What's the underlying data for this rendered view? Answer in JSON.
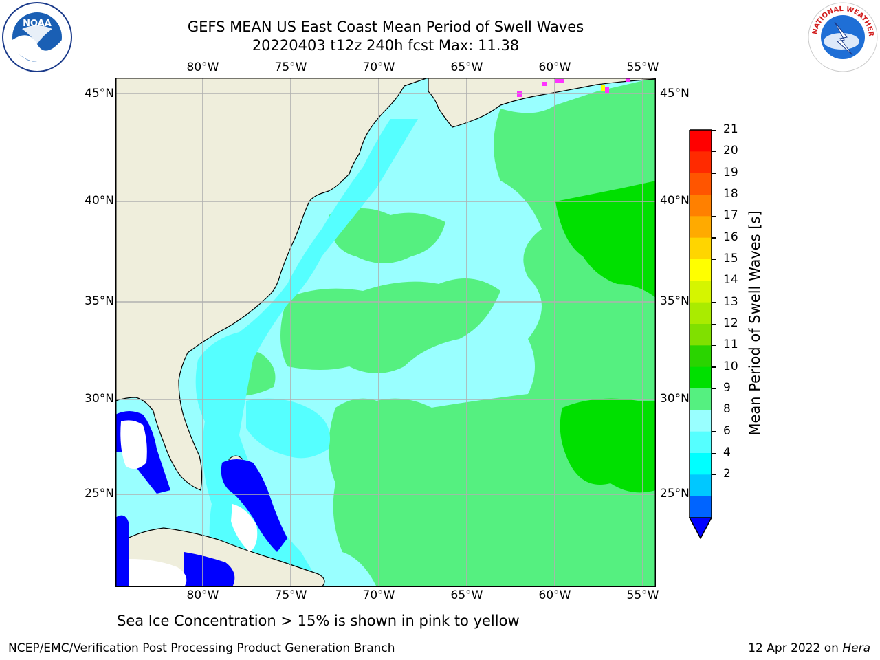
{
  "title_line1": "GEFS MEAN US East Coast Mean Period of Swell Waves",
  "title_line2": "20220403 t12z 240h fcst   Max: 11.38",
  "top_lon_labels": [
    "80°W",
    "75°W",
    "70°W",
    "65°W",
    "60°W",
    "55°W"
  ],
  "bottom_lon_labels": [
    "80°W",
    "75°W",
    "70°W",
    "65°W",
    "60°W",
    "55°W"
  ],
  "left_lat_labels": [
    "45°N",
    "40°N",
    "35°N",
    "30°N",
    "25°N"
  ],
  "right_lat_labels": [
    "45°N",
    "40°N",
    "35°N",
    "30°N",
    "25°N"
  ],
  "colorbar": {
    "title": "Mean Period of Swell Waves [s]",
    "ticks": [
      "21",
      "20",
      "19",
      "18",
      "17",
      "16",
      "15",
      "14",
      "13",
      "12",
      "11",
      "10",
      "9",
      "8",
      "6",
      "4",
      "2"
    ],
    "colors": [
      "#ff0000",
      "#ff2a00",
      "#ff5500",
      "#ff8000",
      "#ffaa00",
      "#ffd500",
      "#ffff00",
      "#d5f500",
      "#aaeb00",
      "#80e000",
      "#2ad400",
      "#00e000",
      "#55f080",
      "#99ffff",
      "#55ffff",
      "#00ffff",
      "#00c8ff",
      "#0064ff"
    ],
    "extend_color": "#0000ff"
  },
  "map_colors": {
    "land": "#efeedc",
    "water_low": "#55ffff",
    "water_mid": "#99ffff",
    "water_high": "#55f080",
    "water_highest": "#00e000",
    "ice_pink": "#ff33ff",
    "shallow_blue": "#0000ff",
    "coastline": "#000000",
    "grid": "#b0b0b0"
  },
  "logos": {
    "left": "noaa-logo",
    "right": "nws-logo",
    "left_text": "NOAA",
    "right_text": "NATIONAL WEATHER SERVICE"
  },
  "caption": "Sea Ice Concentration > 15% is shown in pink to yellow",
  "footer_left": "NCEP/EMC/Verification Post Processing Product Generation Branch",
  "footer_right_date": "12 Apr 2022 on ",
  "footer_right_host": "Hera"
}
